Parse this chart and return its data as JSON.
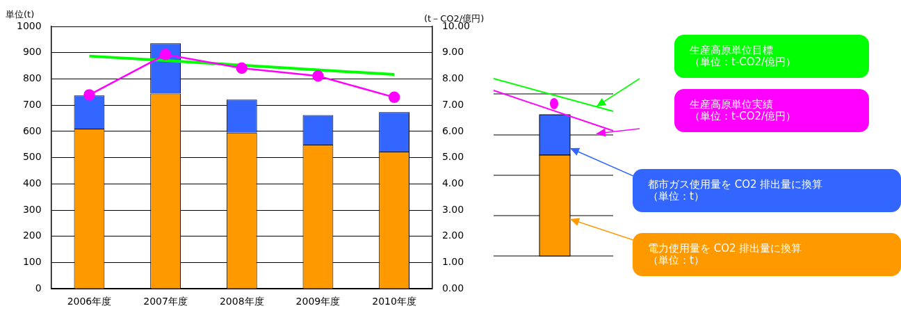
{
  "chart_data": {
    "type": "bar",
    "stacked": true,
    "categories": [
      "2006年度",
      "2007年度",
      "2008年度",
      "2009年度",
      "2010年度"
    ],
    "ylabel": "単位(t)",
    "y2label": "(t－CO2/億円)",
    "ylim": [
      0,
      1000
    ],
    "yticks": [
      0,
      100,
      200,
      300,
      400,
      500,
      600,
      700,
      800,
      900,
      1000
    ],
    "y2lim": [
      0,
      10
    ],
    "y2ticks": [
      {
        "value": 0,
        "label": "0.00"
      },
      {
        "value": 1,
        "label": "1.00"
      },
      {
        "value": 2,
        "label": "2.00"
      },
      {
        "value": 3,
        "label": "3.00"
      },
      {
        "value": 4,
        "label": "4.00"
      },
      {
        "value": 5,
        "label": "5.00"
      },
      {
        "value": 6,
        "label": "6.00"
      },
      {
        "value": 7,
        "label": "7.00"
      },
      {
        "value": 8,
        "label": "8.00"
      },
      {
        "value": 9,
        "label": "9.00"
      },
      {
        "value": 10,
        "label": "10.00"
      }
    ],
    "grid": "y",
    "legend": "right",
    "series": [
      {
        "name": "電力使用量を CO2 排出量に換算（単位：t）",
        "color": "#ff9900",
        "values": [
          610,
          744,
          595,
          549,
          523
        ]
      },
      {
        "name": "都市ガス使用量を CO2 排出量に換算（単位：t）",
        "color": "#3366ff",
        "values": [
          127,
          192,
          126,
          113,
          150
        ]
      },
      {
        "name": "生産高原単位実績（単位：t-CO2/億円）",
        "type": "line",
        "axis": "y2",
        "marker": "circle",
        "color": "#ff00ff",
        "values": [
          7.39,
          8.93,
          8.41,
          8.11,
          7.3
        ]
      },
      {
        "name": "生産高原単位目標（単位：t-CO2/億円）",
        "type": "line",
        "axis": "y2",
        "marker": "none",
        "color": "#00ff00",
        "values": [
          8.87,
          8.7,
          8.52,
          8.34,
          8.17
        ]
      }
    ]
  }
}
